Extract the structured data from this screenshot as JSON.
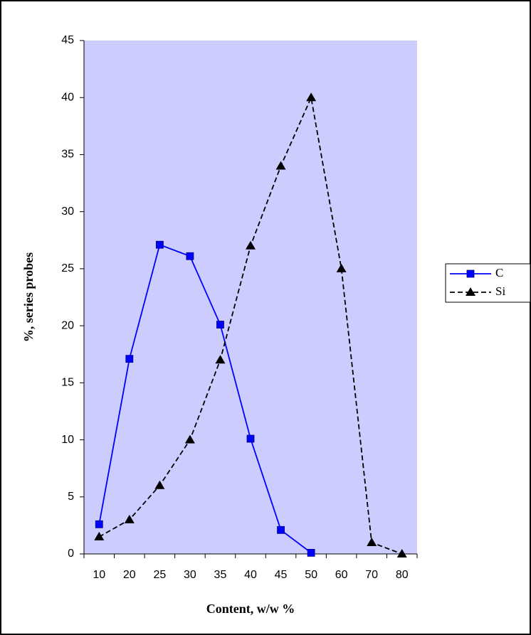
{
  "chart_data": {
    "type": "line",
    "x_label": "Content, w/w %",
    "y_label": "%, series probes",
    "categories": [
      "10",
      "20",
      "25",
      "30",
      "35",
      "40",
      "45",
      "50",
      "60",
      "70",
      "80"
    ],
    "series": [
      {
        "name": "C",
        "color": "#0000ff",
        "marker": "square",
        "dash": "solid",
        "values": [
          2.6,
          17.1,
          27.1,
          26.1,
          20.1,
          10.1,
          2.1,
          0.1,
          null,
          null,
          null
        ]
      },
      {
        "name": "Si",
        "color": "#000000",
        "marker": "triangle",
        "dash": "dashed",
        "values": [
          1.5,
          3,
          6,
          10,
          17,
          27,
          34,
          40,
          25,
          1,
          0
        ]
      }
    ],
    "ylim": [
      0,
      45
    ],
    "yticks": [
      0,
      5,
      10,
      15,
      20,
      25,
      30,
      35,
      40,
      45
    ],
    "plot_background": "#ccccff",
    "legend": "right"
  }
}
